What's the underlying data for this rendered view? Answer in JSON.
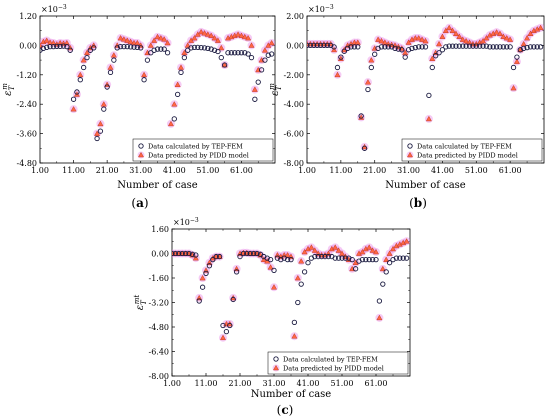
{
  "colors": {
    "fem_marker": "#1a1a40",
    "pidd_marker": "#ff6644",
    "pidd_edge": "#c0392b",
    "halo": "#e88be6"
  },
  "chart_data": [
    {
      "type": "scatter",
      "panel_label": "a",
      "xlabel": "Number of case",
      "ylabel": "ε_T^m",
      "y_multiplier": "×10^{-3}",
      "ylim": [
        -4.8,
        1.2
      ],
      "xlim": [
        1,
        71
      ],
      "y_ticks": [
        "1.20",
        "0.00",
        "-1.20",
        "-2.40",
        "-3.60",
        "-4.80"
      ],
      "x_ticks": [
        "1.00",
        "11.00",
        "21.00",
        "31.00",
        "41.00",
        "51.00",
        "61.00"
      ],
      "legend": [
        "Data calculated by TEP-FEM",
        "Data predicted by PIDD model"
      ],
      "series": [
        {
          "name": "Data calculated by TEP-FEM",
          "x": [
            1,
            2,
            3,
            4,
            5,
            6,
            7,
            8,
            9,
            10,
            11,
            12,
            13,
            14,
            15,
            16,
            17,
            18,
            19,
            20,
            21,
            22,
            23,
            24,
            25,
            26,
            27,
            28,
            29,
            30,
            31,
            32,
            33,
            34,
            35,
            36,
            37,
            38,
            39,
            40,
            41,
            42,
            43,
            44,
            45,
            46,
            47,
            48,
            49,
            50,
            51,
            52,
            53,
            54,
            55,
            56,
            57,
            58,
            59,
            60,
            61,
            62,
            63,
            64,
            65,
            66,
            67,
            68,
            69,
            70
          ],
          "y": [
            -0.2,
            -0.12,
            -0.08,
            -0.05,
            -0.05,
            -0.04,
            -0.04,
            -0.03,
            -0.05,
            -0.2,
            -2.2,
            -1.9,
            -1.4,
            -0.9,
            -0.5,
            -0.2,
            -0.1,
            -3.8,
            -3.5,
            -2.6,
            -1.7,
            -1.1,
            -0.6,
            -0.1,
            -0.05,
            -0.05,
            -0.05,
            -0.06,
            -0.07,
            -0.08,
            -0.1,
            -1.4,
            -0.6,
            -0.3,
            -0.2,
            -0.15,
            -0.15,
            -0.15,
            -0.3,
            -4.0,
            -3.0,
            -2.0,
            -1.1,
            -0.5,
            -0.2,
            -0.1,
            -0.08,
            -0.08,
            -0.09,
            -0.1,
            -0.12,
            -0.15,
            -0.2,
            -0.25,
            -0.5,
            -0.8,
            -0.3,
            -0.3,
            -0.3,
            -0.3,
            -0.3,
            -0.3,
            -0.35,
            -0.5,
            -2.2,
            -1.5,
            -1.0,
            -0.6,
            -0.4,
            -0.35
          ]
        },
        {
          "name": "Data predicted by PIDD model",
          "x": [
            1,
            2,
            3,
            4,
            5,
            6,
            7,
            8,
            9,
            10,
            11,
            12,
            13,
            14,
            15,
            16,
            17,
            18,
            19,
            20,
            21,
            22,
            23,
            24,
            25,
            26,
            27,
            28,
            29,
            30,
            31,
            32,
            33,
            34,
            35,
            36,
            37,
            38,
            39,
            40,
            41,
            42,
            43,
            44,
            45,
            46,
            47,
            48,
            49,
            50,
            51,
            52,
            53,
            54,
            55,
            56,
            57,
            58,
            59,
            60,
            61,
            62,
            63,
            64,
            65,
            66,
            67,
            68,
            69,
            70
          ],
          "y": [
            0.0,
            0.15,
            0.2,
            0.12,
            0.1,
            0.05,
            0.1,
            0.08,
            0.1,
            -0.1,
            -2.6,
            -2.0,
            -1.2,
            -0.6,
            -0.3,
            -0.1,
            0.0,
            -3.6,
            -3.2,
            -2.4,
            -1.6,
            -0.9,
            -0.4,
            0.0,
            0.3,
            0.25,
            0.2,
            0.15,
            0.1,
            0.1,
            0.0,
            -1.2,
            -0.3,
            0.0,
            0.2,
            0.35,
            0.3,
            0.25,
            0.1,
            -3.2,
            -2.4,
            -1.6,
            -0.9,
            -0.3,
            0.0,
            0.2,
            0.3,
            0.45,
            0.55,
            0.5,
            0.45,
            0.4,
            0.3,
            0.2,
            -0.1,
            -0.8,
            0.3,
            0.35,
            0.4,
            0.45,
            0.4,
            0.35,
            0.3,
            0.0,
            -1.8,
            -1.0,
            -0.6,
            -0.2,
            0.0,
            0.1
          ]
        }
      ]
    },
    {
      "type": "scatter",
      "panel_label": "b",
      "xlabel": "Number of case",
      "ylabel": "ε_T^m",
      "y_multiplier": "×10^{-3}",
      "ylim": [
        -8.0,
        2.0
      ],
      "xlim": [
        1,
        71
      ],
      "y_ticks": [
        "2.00",
        "0.00",
        "-2.00",
        "-4.00",
        "-6.00",
        "-8.00"
      ],
      "x_ticks": [
        "1.00",
        "11.00",
        "21.00",
        "31.00",
        "41.00",
        "51.00",
        "61.00"
      ],
      "legend": [
        "Data calculated by TEP-FEM",
        "Data predicted by PIDD model"
      ],
      "series": [
        {
          "name": "Data calculated by TEP-FEM",
          "x": [
            1,
            2,
            3,
            4,
            5,
            6,
            7,
            8,
            9,
            10,
            11,
            12,
            13,
            14,
            15,
            16,
            17,
            18,
            19,
            20,
            21,
            22,
            23,
            24,
            25,
            26,
            27,
            28,
            29,
            30,
            31,
            32,
            33,
            34,
            35,
            36,
            37,
            38,
            39,
            40,
            41,
            42,
            43,
            44,
            45,
            46,
            47,
            48,
            49,
            50,
            51,
            52,
            53,
            54,
            55,
            56,
            57,
            58,
            59,
            60,
            61,
            62,
            63,
            64,
            65,
            66,
            67,
            68,
            69,
            70
          ],
          "y": [
            0.0,
            0.0,
            0.0,
            0.0,
            0.0,
            0.0,
            0.0,
            0.0,
            -0.1,
            -1.5,
            -0.8,
            -0.4,
            -0.2,
            -0.1,
            -0.1,
            -0.1,
            -4.8,
            -7.0,
            -3.0,
            -1.5,
            -0.6,
            -0.2,
            -0.1,
            -0.1,
            -0.1,
            -0.1,
            -0.2,
            -0.25,
            -0.3,
            -0.8,
            -0.3,
            -0.2,
            -0.15,
            -0.1,
            -0.1,
            -0.1,
            -3.4,
            -1.5,
            -0.7,
            -0.5,
            -0.3,
            -0.1,
            -0.05,
            -0.05,
            -0.05,
            -0.05,
            -0.05,
            -0.05,
            -0.05,
            -0.05,
            -0.05,
            -0.05,
            -0.05,
            -0.05,
            -0.1,
            -0.1,
            -0.1,
            -0.1,
            -0.1,
            -0.1,
            -0.1,
            -1.5,
            -0.8,
            -0.3,
            -0.2,
            -0.15,
            -0.1,
            -0.1,
            -0.1,
            -0.1
          ]
        },
        {
          "name": "Data predicted by PIDD model",
          "x": [
            1,
            2,
            3,
            4,
            5,
            6,
            7,
            8,
            9,
            10,
            11,
            12,
            13,
            14,
            15,
            16,
            17,
            18,
            19,
            20,
            21,
            22,
            23,
            24,
            25,
            26,
            27,
            28,
            29,
            30,
            31,
            32,
            33,
            34,
            35,
            36,
            37,
            38,
            39,
            40,
            41,
            42,
            43,
            44,
            45,
            46,
            47,
            48,
            49,
            50,
            51,
            52,
            53,
            54,
            55,
            56,
            57,
            58,
            59,
            60,
            61,
            62,
            63,
            64,
            65,
            66,
            67,
            68,
            69,
            70
          ],
          "y": [
            0.1,
            0.1,
            0.1,
            0.1,
            0.1,
            0.1,
            0.1,
            0.1,
            -0.3,
            -2.0,
            -0.9,
            -0.3,
            0.0,
            0.1,
            0.2,
            0.2,
            -4.9,
            -6.9,
            -2.5,
            -1.0,
            -0.2,
            0.4,
            0.3,
            0.2,
            0.1,
            0.05,
            0.0,
            -0.1,
            -0.2,
            -0.5,
            0.2,
            0.4,
            0.5,
            0.5,
            0.4,
            0.3,
            -5.0,
            -0.9,
            -0.5,
            0.1,
            0.6,
            1.0,
            1.2,
            1.0,
            0.8,
            0.6,
            0.4,
            0.3,
            0.2,
            0.1,
            0.1,
            0.2,
            0.3,
            0.5,
            0.7,
            0.8,
            0.9,
            0.8,
            0.6,
            0.5,
            0.4,
            -2.9,
            -1.1,
            -0.3,
            0.1,
            0.5,
            0.8,
            1.0,
            1.1,
            1.2
          ]
        }
      ]
    },
    {
      "type": "scatter",
      "panel_label": "c",
      "xlabel": "Number of case",
      "ylabel": "ε_T^{mt}",
      "y_multiplier": "×10^{-3}",
      "ylim": [
        -8.0,
        1.6
      ],
      "xlim": [
        1,
        71
      ],
      "y_ticks": [
        "1.60",
        "0.00",
        "-1.60",
        "-3.20",
        "-4.80",
        "-6.40",
        "-8.00"
      ],
      "x_ticks": [
        "1.00",
        "11.00",
        "21.00",
        "31.00",
        "41.00",
        "51.00",
        "61.00"
      ],
      "legend": [
        "Data calculated by TEP-FEM",
        "Data predicted by PIDD model"
      ],
      "series": [
        {
          "name": "Data calculated by TEP-FEM",
          "x": [
            1,
            2,
            3,
            4,
            5,
            6,
            7,
            8,
            9,
            10,
            11,
            12,
            13,
            14,
            15,
            16,
            17,
            18,
            19,
            20,
            21,
            22,
            23,
            24,
            25,
            26,
            27,
            28,
            29,
            30,
            31,
            32,
            33,
            34,
            35,
            36,
            37,
            38,
            39,
            40,
            41,
            42,
            43,
            44,
            45,
            46,
            47,
            48,
            49,
            50,
            51,
            52,
            53,
            54,
            55,
            56,
            57,
            58,
            59,
            60,
            61,
            62,
            63,
            64,
            65,
            66,
            67,
            68,
            69,
            70
          ],
          "y": [
            0.0,
            0.0,
            0.0,
            0.0,
            0.0,
            0.0,
            -0.05,
            -0.1,
            -3.1,
            -2.2,
            -1.3,
            -0.8,
            -0.4,
            -0.2,
            -0.2,
            -4.7,
            -5.1,
            -4.7,
            -3.0,
            -1.2,
            -0.2,
            0.0,
            0.0,
            0.0,
            0.0,
            0.0,
            -0.05,
            -0.2,
            -0.3,
            -0.4,
            -1.1,
            -0.3,
            -0.4,
            -0.3,
            -0.4,
            -0.4,
            -4.5,
            -3.2,
            -2.0,
            -1.2,
            -0.6,
            -0.3,
            -0.2,
            -0.2,
            -0.2,
            -0.2,
            -0.2,
            -0.2,
            -0.3,
            -0.3,
            -0.3,
            -0.3,
            -0.3,
            -0.4,
            -1.0,
            -0.5,
            -0.4,
            -0.4,
            -0.4,
            -0.4,
            -0.4,
            -3.1,
            -2.0,
            -1.2,
            -0.6,
            -0.4,
            -0.3,
            -0.3,
            -0.3,
            -0.3
          ]
        },
        {
          "name": "Data predicted by PIDD model",
          "x": [
            1,
            2,
            3,
            4,
            5,
            6,
            7,
            8,
            9,
            10,
            11,
            12,
            13,
            14,
            15,
            16,
            17,
            18,
            19,
            20,
            21,
            22,
            23,
            24,
            25,
            26,
            27,
            28,
            29,
            30,
            31,
            32,
            33,
            34,
            35,
            36,
            37,
            38,
            39,
            40,
            41,
            42,
            43,
            44,
            45,
            46,
            47,
            48,
            49,
            50,
            51,
            52,
            53,
            54,
            55,
            56,
            57,
            58,
            59,
            60,
            61,
            62,
            63,
            64,
            65,
            66,
            67,
            68,
            69,
            70
          ],
          "y": [
            0.0,
            0.0,
            0.0,
            0.0,
            0.0,
            0.0,
            -0.1,
            -0.3,
            -2.9,
            -1.6,
            -1.1,
            -0.6,
            -0.3,
            -0.2,
            -0.2,
            -5.5,
            -4.6,
            -4.6,
            -2.9,
            -1.0,
            0.0,
            0.05,
            0.05,
            0.0,
            0.0,
            0.0,
            -0.1,
            -0.4,
            -0.5,
            -0.9,
            -2.2,
            -0.1,
            -0.2,
            -0.1,
            -0.1,
            -0.2,
            -5.4,
            -1.6,
            -0.5,
            0.1,
            0.3,
            0.4,
            0.2,
            0.0,
            -0.1,
            -0.1,
            0.0,
            0.3,
            0.4,
            0.2,
            0.0,
            -0.2,
            -0.4,
            -1.0,
            -0.6,
            0.0,
            0.1,
            0.3,
            0.4,
            0.2,
            0.1,
            -4.2,
            -1.0,
            -0.4,
            0.0,
            0.3,
            0.5,
            0.6,
            0.7,
            0.8
          ]
        }
      ]
    }
  ]
}
